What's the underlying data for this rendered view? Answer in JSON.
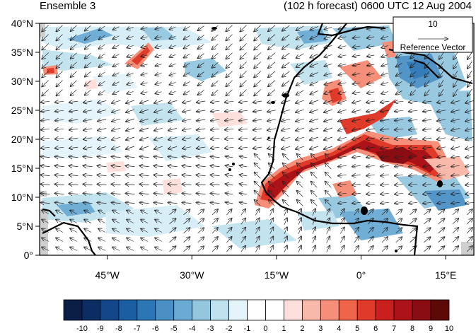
{
  "header": {
    "left_title": "Ensemble 3",
    "right_title": "(102 h forecast) 0600 UTC 12 Aug 2004"
  },
  "axes": {
    "lat_ticks": [
      {
        "deg": 40,
        "label": "40°N"
      },
      {
        "deg": 35,
        "label": "35°N"
      },
      {
        "deg": 30,
        "label": "30°N"
      },
      {
        "deg": 25,
        "label": "25°N"
      },
      {
        "deg": 20,
        "label": "20°N"
      },
      {
        "deg": 15,
        "label": "15°N"
      },
      {
        "deg": 10,
        "label": "10°N"
      },
      {
        "deg": 5,
        "label": "5°N"
      },
      {
        "deg": 0,
        "label": "0°"
      }
    ],
    "lon_ticks": [
      {
        "deg": -45,
        "label": "45°W"
      },
      {
        "deg": -30,
        "label": "30°W"
      },
      {
        "deg": -15,
        "label": "15°W"
      },
      {
        "deg": 0,
        "label": "0°"
      },
      {
        "deg": 15,
        "label": "15°E"
      }
    ],
    "lon_range": [
      -57,
      20
    ],
    "lat_range": [
      0,
      40
    ]
  },
  "reference_vector": {
    "magnitude": "10",
    "label": "Reference Vector"
  },
  "colorbar": {
    "labels": [
      "-10",
      "-9",
      "-8",
      "-7",
      "-6",
      "-5",
      "-4",
      "-3",
      "-2",
      "-1",
      "0",
      "1",
      "2",
      "3",
      "4",
      "5",
      "6",
      "7",
      "8",
      "9",
      "10"
    ],
    "colors": [
      "#0b1e45",
      "#0c2d63",
      "#14478a",
      "#1c5ea2",
      "#2c76b5",
      "#4a90c5",
      "#6aaad3",
      "#94c7df",
      "#c0e2ef",
      "#e3f4fa",
      "#ffffff",
      "#ffffff",
      "#fde0dc",
      "#f9b9aa",
      "#f58f79",
      "#ee6549",
      "#e03a2a",
      "#c91f1f",
      "#ac1318",
      "#8a0d13",
      "#5f0808"
    ]
  }
}
